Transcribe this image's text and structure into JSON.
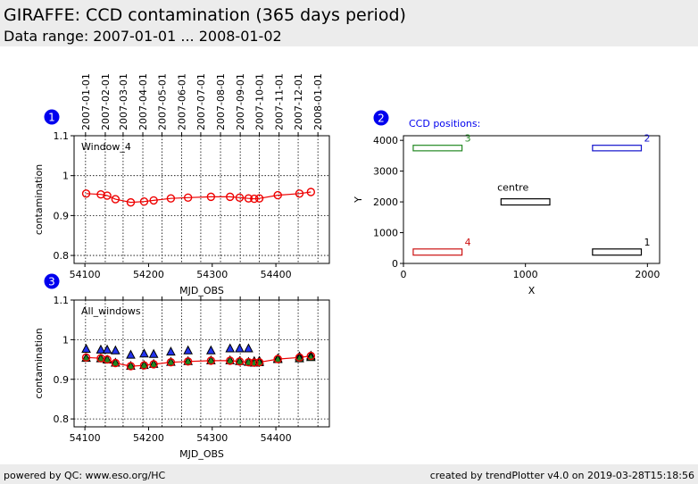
{
  "header": {
    "title": "GIRAFFE: CCD contamination (365 days period)",
    "subtitle": "Data range: 2007-01-01 ... 2008-01-02"
  },
  "footer": {
    "left": "powered by QC: www.eso.org/HC",
    "right": "created by trendPlotter v4.0 on 2019-03-28T15:18:56"
  },
  "colors": {
    "header_bg": "#ececec",
    "badge": "#0000ee",
    "series_line": "#ee0000",
    "triangle_fill": "#2233ee",
    "green": "#228822",
    "blue": "#1111cc",
    "red": "#cc1111",
    "black": "#000000"
  },
  "date_ticks": [
    {
      "label": "2007-01-01",
      "mjd": 54101
    },
    {
      "label": "2007-02-01",
      "mjd": 54132
    },
    {
      "label": "2007-03-01",
      "mjd": 54160
    },
    {
      "label": "2007-04-01",
      "mjd": 54191
    },
    {
      "label": "2007-05-01",
      "mjd": 54221
    },
    {
      "label": "2007-06-01",
      "mjd": 54252
    },
    {
      "label": "2007-07-01",
      "mjd": 54282
    },
    {
      "label": "2007-08-01",
      "mjd": 54313
    },
    {
      "label": "2007-09-01",
      "mjd": 54344
    },
    {
      "label": "2007-10-01",
      "mjd": 54374
    },
    {
      "label": "2007-11-01",
      "mjd": 54405
    },
    {
      "label": "2007-12-01",
      "mjd": 54435
    },
    {
      "label": "2008-01-01",
      "mjd": 54466
    }
  ],
  "chart_data": [
    {
      "id": "1",
      "type": "line",
      "panel_label": "Window_4",
      "xlabel": "MJD_OBS",
      "ylabel": "contamination",
      "xlim": [
        54083,
        54484
      ],
      "ylim": [
        0.78,
        1.1
      ],
      "xticks": [
        54100,
        54200,
        54300,
        54400
      ],
      "yticks": [
        0.8,
        0.9,
        1.0,
        1.1
      ],
      "ytick_labels": [
        "0.8",
        "0.9",
        "1",
        "1.1"
      ],
      "grid": true,
      "series": [
        {
          "marker": "circle",
          "x": [
            54102,
            54125,
            54135,
            54148,
            54172,
            54193,
            54208,
            54235,
            54262,
            54298,
            54328,
            54343,
            54357,
            54366,
            54374,
            54403,
            54437,
            54455
          ],
          "y": [
            0.955,
            0.953,
            0.95,
            0.941,
            0.933,
            0.935,
            0.938,
            0.943,
            0.945,
            0.947,
            0.947,
            0.945,
            0.943,
            0.942,
            0.943,
            0.951,
            0.955,
            0.959
          ]
        }
      ]
    },
    {
      "id": "3",
      "type": "line",
      "panel_label": "All_windows",
      "xlabel": "MJD_OBS",
      "ylabel": "contamination",
      "xlim": [
        54083,
        54484
      ],
      "ylim": [
        0.78,
        1.1
      ],
      "xticks": [
        54100,
        54200,
        54300,
        54400
      ],
      "yticks": [
        0.8,
        0.9,
        1.0,
        1.1
      ],
      "ytick_labels": [
        "0.8",
        "0.9",
        "1",
        "1.1"
      ],
      "grid": true,
      "series": [
        {
          "marker": "triangle-blue",
          "x": [
            54102,
            54125,
            54135,
            54148,
            54172,
            54193,
            54208,
            54235,
            54262,
            54298,
            54328,
            54343,
            54357,
            54366,
            54374,
            54403,
            54437,
            54455
          ],
          "y": [
            0.975,
            0.973,
            0.973,
            0.971,
            0.96,
            0.963,
            0.962,
            0.968,
            0.971,
            0.971,
            0.976,
            0.976,
            0.976,
            0.944,
            0.945,
            0.951,
            0.956,
            0.958
          ]
        },
        {
          "marker": "triangle-green",
          "x": [
            54102,
            54125,
            54135,
            54148,
            54172,
            54193,
            54208,
            54235,
            54262,
            54298,
            54328,
            54343,
            54357,
            54366,
            54374,
            54403,
            54437,
            54455
          ],
          "y": [
            0.952,
            0.951,
            0.948,
            0.94,
            0.932,
            0.934,
            0.937,
            0.942,
            0.944,
            0.946,
            0.946,
            0.944,
            0.942,
            0.94,
            0.941,
            0.949,
            0.951,
            0.954
          ]
        },
        {
          "marker": "circle",
          "x": [
            54102,
            54125,
            54135,
            54148,
            54172,
            54193,
            54208,
            54235,
            54262,
            54298,
            54328,
            54343,
            54357,
            54366,
            54374,
            54403,
            54437,
            54455
          ],
          "y": [
            0.955,
            0.953,
            0.95,
            0.941,
            0.933,
            0.935,
            0.938,
            0.943,
            0.945,
            0.947,
            0.947,
            0.945,
            0.943,
            0.942,
            0.943,
            0.951,
            0.955,
            0.959
          ]
        }
      ]
    },
    {
      "id": "2",
      "type": "diagram",
      "title": "CCD positions:",
      "xlabel": "X",
      "ylabel": "Y",
      "xlim": [
        0,
        2100
      ],
      "ylim": [
        0,
        4150
      ],
      "xticks": [
        0,
        1000,
        2000
      ],
      "yticks": [
        0,
        1000,
        2000,
        3000,
        4000
      ],
      "grid": false,
      "windows": [
        {
          "label": "1",
          "x0": 1550,
          "x1": 1950,
          "y0": 270,
          "y1": 470,
          "color": "#000000"
        },
        {
          "label": "2",
          "x0": 1550,
          "x1": 1950,
          "y0": 3660,
          "y1": 3840,
          "color": "#1111cc"
        },
        {
          "label": "3",
          "x0": 80,
          "x1": 480,
          "y0": 3660,
          "y1": 3840,
          "color": "#228822"
        },
        {
          "label": "4",
          "x0": 80,
          "x1": 480,
          "y0": 270,
          "y1": 470,
          "color": "#cc1111"
        },
        {
          "label": "centre",
          "x0": 800,
          "x1": 1200,
          "y0": 1900,
          "y1": 2100,
          "color": "#000000"
        }
      ]
    }
  ]
}
